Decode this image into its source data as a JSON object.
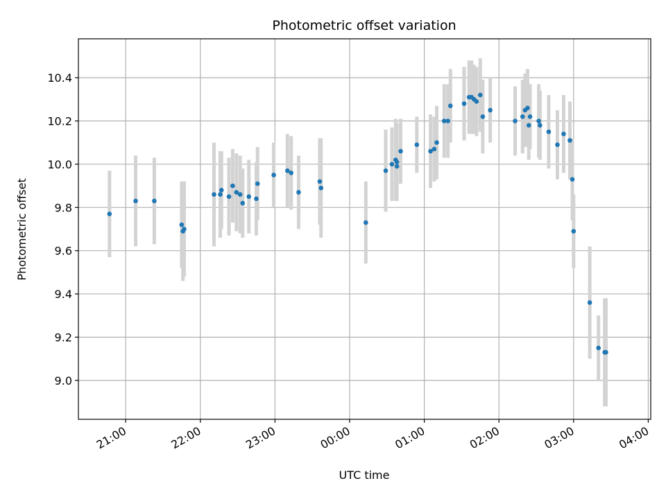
{
  "chart_data": {
    "type": "scatter",
    "title": "Photometric offset variation",
    "xlabel": "UTC time",
    "ylabel": "Photometric offset",
    "x_ticks": [
      "21:00",
      "22:00",
      "23:00",
      "00:00",
      "01:00",
      "02:00",
      "03:00",
      "04:00"
    ],
    "y_ticks": [
      "9.0",
      "9.2",
      "9.4",
      "9.6",
      "9.8",
      "10.0",
      "10.2",
      "10.4"
    ],
    "xlim": [
      "20:22",
      "04:02"
    ],
    "ylim": [
      8.82,
      10.58
    ],
    "grid": true,
    "colors": {
      "point": "#1f77b4",
      "errorbar": "#d3d3d3",
      "grid": "#b0b0b0"
    },
    "series": [
      {
        "x": [
          "20:47",
          "21:08",
          "21:23",
          "21:45",
          "21:46",
          "21:47",
          "22:11",
          "22:16",
          "22:17",
          "22:23",
          "22:26",
          "22:29",
          "22:32",
          "22:34",
          "22:39",
          "22:45",
          "22:46",
          "22:59",
          "23:10",
          "23:13",
          "23:19",
          "23:36",
          "23:37",
          "00:13",
          "00:29",
          "00:34",
          "00:37",
          "00:38",
          "00:38",
          "00:41",
          "00:54",
          "01:05",
          "01:08",
          "01:10",
          "01:16",
          "01:19",
          "01:21",
          "01:32",
          "01:36",
          "01:38",
          "01:40",
          "01:42",
          "01:45",
          "01:47",
          "01:53",
          "02:13",
          "02:19",
          "02:21",
          "02:23",
          "02:24",
          "02:25",
          "02:32",
          "02:33",
          "02:40",
          "02:47",
          "02:52",
          "02:57",
          "02:59",
          "03:00",
          "03:13",
          "03:20",
          "03:25",
          "03:26"
        ],
        "y": [
          9.77,
          9.83,
          9.83,
          9.72,
          9.69,
          9.7,
          9.86,
          9.86,
          9.88,
          9.85,
          9.9,
          9.87,
          9.86,
          9.82,
          9.85,
          9.84,
          9.91,
          9.95,
          9.97,
          9.96,
          9.87,
          9.92,
          9.89,
          9.73,
          9.97,
          10.0,
          10.02,
          10.01,
          9.99,
          10.06,
          10.09,
          10.06,
          10.07,
          10.1,
          10.2,
          10.2,
          10.27,
          10.28,
          10.31,
          10.31,
          10.3,
          10.29,
          10.32,
          10.22,
          10.25,
          10.2,
          10.22,
          10.25,
          10.26,
          10.18,
          10.22,
          10.2,
          10.18,
          10.15,
          10.09,
          10.14,
          10.11,
          9.93,
          9.69,
          9.36,
          9.15,
          9.13,
          9.13
        ],
        "err": [
          0.2,
          0.21,
          0.2,
          0.2,
          0.23,
          0.22,
          0.24,
          0.2,
          0.18,
          0.18,
          0.17,
          0.18,
          0.18,
          0.16,
          0.17,
          0.17,
          0.17,
          0.15,
          0.17,
          0.17,
          0.17,
          0.2,
          0.23,
          0.19,
          0.19,
          0.17,
          0.19,
          0.18,
          0.16,
          0.15,
          0.13,
          0.17,
          0.15,
          0.17,
          0.17,
          0.17,
          0.17,
          0.17,
          0.17,
          0.17,
          0.16,
          0.16,
          0.17,
          0.17,
          0.15,
          0.16,
          0.17,
          0.17,
          0.18,
          0.16,
          0.15,
          0.17,
          0.16,
          0.17,
          0.16,
          0.18,
          0.18,
          0.19,
          0.17,
          0.26,
          0.15,
          0.25,
          0.25
        ]
      }
    ]
  }
}
